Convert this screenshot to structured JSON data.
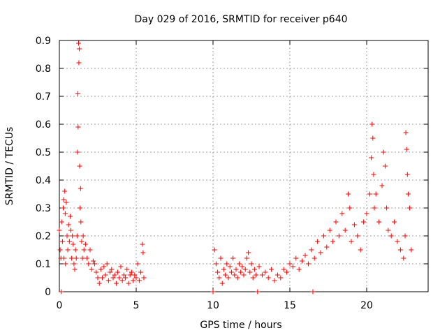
{
  "chart_data": {
    "type": "scatter",
    "title": "Day 029 of 2016, SRMTID for receiver p640",
    "xlabel": "GPS time / hours",
    "ylabel": "SRMTID / TECUs",
    "xlim": [
      0,
      24
    ],
    "ylim": [
      0,
      0.9
    ],
    "xticks": [
      0,
      5,
      10,
      15,
      20
    ],
    "yticks": [
      0,
      0.1,
      0.2,
      0.3,
      0.4,
      0.5,
      0.6,
      0.7,
      0.8,
      0.9
    ],
    "xtick_labels": [
      "0",
      "5",
      "10",
      "15",
      "20"
    ],
    "ytick_labels": [
      "0",
      "0.1",
      "0.2",
      "0.3",
      "0.4",
      "0.5",
      "0.6",
      "0.7",
      "0.8",
      "0.9"
    ],
    "grid": true,
    "marker": "+",
    "color": "#ff0000",
    "series": [
      {
        "name": "SRMTID",
        "points": [
          [
            0.0,
            0.22
          ],
          [
            0.05,
            0.15
          ],
          [
            0.1,
            0.12
          ],
          [
            0.12,
            0.0
          ],
          [
            0.15,
            0.25
          ],
          [
            0.2,
            0.18
          ],
          [
            0.25,
            0.3
          ],
          [
            0.28,
            0.33
          ],
          [
            0.3,
            0.12
          ],
          [
            0.35,
            0.36
          ],
          [
            0.38,
            0.28
          ],
          [
            0.4,
            0.1
          ],
          [
            0.45,
            0.32
          ],
          [
            0.5,
            0.2
          ],
          [
            0.55,
            0.15
          ],
          [
            0.6,
            0.24
          ],
          [
            0.65,
            0.18
          ],
          [
            0.7,
            0.27
          ],
          [
            0.75,
            0.22
          ],
          [
            0.8,
            0.12
          ],
          [
            0.85,
            0.2
          ],
          [
            0.9,
            0.17
          ],
          [
            0.95,
            0.1
          ],
          [
            1.0,
            0.08
          ],
          [
            1.05,
            0.15
          ],
          [
            1.1,
            0.12
          ],
          [
            1.15,
            0.2
          ],
          [
            1.18,
            0.5
          ],
          [
            1.2,
            0.71
          ],
          [
            1.22,
            0.59
          ],
          [
            1.25,
            0.89
          ],
          [
            1.27,
            0.82
          ],
          [
            1.3,
            0.87
          ],
          [
            1.32,
            0.45
          ],
          [
            1.35,
            0.3
          ],
          [
            1.38,
            0.37
          ],
          [
            1.4,
            0.25
          ],
          [
            1.45,
            0.18
          ],
          [
            1.5,
            0.12
          ],
          [
            1.55,
            0.2
          ],
          [
            1.6,
            0.15
          ],
          [
            1.7,
            0.17
          ],
          [
            1.8,
            0.12
          ],
          [
            1.9,
            0.1
          ],
          [
            2.0,
            0.15
          ],
          [
            2.1,
            0.08
          ],
          [
            2.2,
            0.11
          ],
          [
            2.3,
            0.1
          ],
          [
            2.4,
            0.07
          ],
          [
            2.5,
            0.05
          ],
          [
            2.6,
            0.03
          ],
          [
            2.7,
            0.08
          ],
          [
            2.8,
            0.05
          ],
          [
            2.9,
            0.09
          ],
          [
            3.0,
            0.06
          ],
          [
            3.1,
            0.1
          ],
          [
            3.2,
            0.04
          ],
          [
            3.3,
            0.07
          ],
          [
            3.4,
            0.08
          ],
          [
            3.5,
            0.05
          ],
          [
            3.6,
            0.06
          ],
          [
            3.7,
            0.03
          ],
          [
            3.8,
            0.07
          ],
          [
            3.9,
            0.05
          ],
          [
            4.0,
            0.09
          ],
          [
            4.1,
            0.04
          ],
          [
            4.2,
            0.06
          ],
          [
            4.3,
            0.05
          ],
          [
            4.4,
            0.08
          ],
          [
            4.5,
            0.03
          ],
          [
            4.6,
            0.06
          ],
          [
            4.7,
            0.07
          ],
          [
            4.8,
            0.04
          ],
          [
            4.9,
            0.06
          ],
          [
            5.0,
            0.05
          ],
          [
            5.1,
            0.1
          ],
          [
            5.2,
            0.04
          ],
          [
            5.3,
            0.07
          ],
          [
            5.4,
            0.17
          ],
          [
            5.45,
            0.14
          ],
          [
            5.5,
            0.05
          ],
          [
            10.0,
            0.0
          ],
          [
            10.1,
            0.15
          ],
          [
            10.2,
            0.1
          ],
          [
            10.3,
            0.07
          ],
          [
            10.4,
            0.05
          ],
          [
            10.5,
            0.12
          ],
          [
            10.6,
            0.03
          ],
          [
            10.7,
            0.08
          ],
          [
            10.8,
            0.06
          ],
          [
            10.9,
            0.1
          ],
          [
            11.0,
            0.05
          ],
          [
            11.1,
            0.09
          ],
          [
            11.2,
            0.07
          ],
          [
            11.3,
            0.12
          ],
          [
            11.4,
            0.06
          ],
          [
            11.5,
            0.08
          ],
          [
            11.6,
            0.05
          ],
          [
            11.7,
            0.1
          ],
          [
            11.8,
            0.07
          ],
          [
            11.9,
            0.09
          ],
          [
            12.0,
            0.06
          ],
          [
            12.1,
            0.08
          ],
          [
            12.2,
            0.12
          ],
          [
            12.3,
            0.14
          ],
          [
            12.4,
            0.07
          ],
          [
            12.5,
            0.1
          ],
          [
            12.6,
            0.05
          ],
          [
            12.7,
            0.08
          ],
          [
            12.8,
            0.06
          ],
          [
            12.9,
            0.0
          ],
          [
            13.0,
            0.09
          ],
          [
            13.2,
            0.06
          ],
          [
            13.4,
            0.07
          ],
          [
            13.6,
            0.05
          ],
          [
            13.8,
            0.08
          ],
          [
            14.0,
            0.04
          ],
          [
            14.2,
            0.06
          ],
          [
            14.4,
            0.05
          ],
          [
            14.6,
            0.08
          ],
          [
            14.8,
            0.07
          ],
          [
            15.0,
            0.1
          ],
          [
            15.2,
            0.09
          ],
          [
            15.4,
            0.12
          ],
          [
            15.6,
            0.08
          ],
          [
            15.8,
            0.11
          ],
          [
            16.0,
            0.13
          ],
          [
            16.2,
            0.1
          ],
          [
            16.4,
            0.15
          ],
          [
            16.5,
            0.0
          ],
          [
            16.6,
            0.12
          ],
          [
            16.8,
            0.18
          ],
          [
            17.0,
            0.14
          ],
          [
            17.2,
            0.2
          ],
          [
            17.4,
            0.16
          ],
          [
            17.6,
            0.22
          ],
          [
            17.8,
            0.18
          ],
          [
            18.0,
            0.25
          ],
          [
            18.2,
            0.2
          ],
          [
            18.4,
            0.28
          ],
          [
            18.6,
            0.22
          ],
          [
            18.8,
            0.35
          ],
          [
            18.9,
            0.3
          ],
          [
            19.0,
            0.18
          ],
          [
            19.2,
            0.24
          ],
          [
            19.4,
            0.2
          ],
          [
            19.6,
            0.15
          ],
          [
            19.8,
            0.25
          ],
          [
            20.0,
            0.28
          ],
          [
            20.2,
            0.35
          ],
          [
            20.3,
            0.48
          ],
          [
            20.35,
            0.6
          ],
          [
            20.4,
            0.55
          ],
          [
            20.45,
            0.42
          ],
          [
            20.5,
            0.3
          ],
          [
            20.6,
            0.35
          ],
          [
            20.8,
            0.25
          ],
          [
            21.0,
            0.38
          ],
          [
            21.1,
            0.5
          ],
          [
            21.2,
            0.45
          ],
          [
            21.3,
            0.3
          ],
          [
            21.4,
            0.22
          ],
          [
            21.6,
            0.2
          ],
          [
            21.8,
            0.25
          ],
          [
            22.0,
            0.18
          ],
          [
            22.2,
            0.15
          ],
          [
            22.4,
            0.12
          ],
          [
            22.5,
            0.2
          ],
          [
            22.55,
            0.57
          ],
          [
            22.6,
            0.51
          ],
          [
            22.65,
            0.42
          ],
          [
            22.7,
            0.35
          ],
          [
            22.8,
            0.3
          ],
          [
            22.9,
            0.15
          ]
        ]
      }
    ]
  }
}
